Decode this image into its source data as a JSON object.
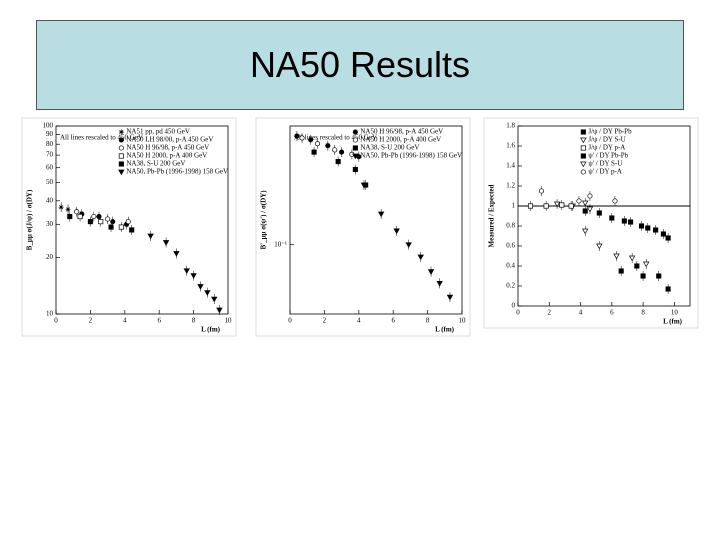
{
  "title": "NA50 Results",
  "chart_data": [
    {
      "type": "scatter",
      "ylabel": "B_μμ σ(J/ψ) / σ(DY)",
      "xlabel": "L (fm)",
      "annotation": "All lines rescaled to 450 GeV",
      "log_y": true,
      "xlim": [
        0,
        10
      ],
      "ylim": [
        10,
        100
      ],
      "xticks": [
        0,
        2,
        4,
        6,
        8,
        10
      ],
      "yticks": [
        10,
        20,
        30,
        40,
        50,
        60,
        70,
        80,
        90,
        100
      ],
      "legend": "top-right",
      "series": [
        {
          "name": "NA51 pp, pd 450 GeV",
          "marker": "star",
          "filled": true,
          "x": [
            0.3,
            0.7
          ],
          "values": [
            37,
            36
          ]
        },
        {
          "name": "NA50 LH 98/00, p-A 450 GeV",
          "marker": "circle",
          "filled": true,
          "x": [
            1.5,
            2.5,
            3.3,
            4.1
          ],
          "values": [
            34,
            33,
            31,
            30
          ]
        },
        {
          "name": "NA50 H 96/98, p-A 450 GeV",
          "marker": "circle",
          "filled": false,
          "x": [
            1.2,
            2.2,
            3.0,
            4.2
          ],
          "values": [
            35,
            33,
            32,
            31
          ]
        },
        {
          "name": "NA50 H 2000, p-A 400 GeV",
          "marker": "square",
          "filled": false,
          "x": [
            1.4,
            2.6,
            3.8
          ],
          "values": [
            33,
            31,
            29
          ]
        },
        {
          "name": "NA38, S-U 200 GeV",
          "marker": "square",
          "filled": true,
          "x": [
            0.8,
            2.0,
            3.2,
            4.4
          ],
          "values": [
            33,
            31,
            29,
            28
          ]
        },
        {
          "name": "NA50, Pb-Pb (1996-1998) 158 GeV",
          "marker": "triangle",
          "filled": true,
          "x": [
            5.5,
            6.4,
            7.0,
            7.6,
            8.0,
            8.4,
            8.8,
            9.2,
            9.5
          ],
          "values": [
            26,
            24,
            21,
            17,
            16,
            14,
            13,
            12,
            10.5
          ]
        }
      ]
    },
    {
      "type": "scatter",
      "ylabel": "B'_μμ σ(ψ') / σ(DY)",
      "xlabel": "L (fm)",
      "annotation": "All lines rescaled to 450 GeV",
      "log_y": true,
      "xlim": [
        0,
        10
      ],
      "ylim": [
        0.04,
        0.48
      ],
      "xticks": [
        0,
        2,
        4,
        6,
        8,
        10
      ],
      "yticks": [
        {
          "value": 0.1,
          "label": "10⁻¹"
        }
      ],
      "legend": "top-right",
      "series": [
        {
          "name": "NA50 H 96/98, p-A 450 GeV",
          "marker": "circle",
          "filled": true,
          "x": [
            0.4,
            1.2,
            2.2,
            3.0,
            4.0
          ],
          "values": [
            0.42,
            0.4,
            0.37,
            0.34,
            0.32
          ]
        },
        {
          "name": "NA50 H 2000, p-A 400 GeV",
          "marker": "circle",
          "filled": false,
          "x": [
            0.7,
            1.6,
            2.6,
            3.6
          ],
          "values": [
            0.41,
            0.38,
            0.35,
            0.33
          ]
        },
        {
          "name": "NA38, S-U 200 GeV",
          "marker": "square",
          "filled": true,
          "x": [
            1.4,
            2.8,
            3.8,
            4.4
          ],
          "values": [
            0.34,
            0.3,
            0.27,
            0.22
          ]
        },
        {
          "name": "NA50, Pb-Pb (1996-1998) 158 GeV",
          "marker": "triangle",
          "filled": true,
          "x": [
            4.3,
            5.3,
            6.2,
            6.9,
            7.6,
            8.2,
            8.7,
            9.3
          ],
          "values": [
            0.22,
            0.15,
            0.12,
            0.1,
            0.085,
            0.07,
            0.06,
            0.05
          ]
        }
      ]
    },
    {
      "type": "scatter",
      "ylabel": "Measured / Expected",
      "xlabel": "L (fm)",
      "reference_line": 1,
      "log_y": false,
      "xlim": [
        0,
        11
      ],
      "ylim": [
        0,
        1.8
      ],
      "xticks": [
        0,
        2,
        4,
        6,
        8,
        10
      ],
      "yticks": [
        0,
        0.2,
        0.4,
        0.6,
        0.8,
        1,
        1.2,
        1.4,
        1.6,
        1.8
      ],
      "legend": "top-right",
      "series": [
        {
          "name": "J/ψ / DY Pb-Pb",
          "marker": "square",
          "filled": true,
          "x": [
            4.3,
            5.2,
            6.0,
            6.8,
            7.2,
            7.9,
            8.3,
            8.8,
            9.3,
            9.6
          ],
          "values": [
            0.95,
            0.93,
            0.88,
            0.85,
            0.84,
            0.8,
            0.78,
            0.76,
            0.72,
            0.68
          ]
        },
        {
          "name": "J/ψ / DY S-U",
          "marker": "triangle",
          "filled": false,
          "x": [
            2.5,
            3.5,
            4.3,
            4.6
          ],
          "values": [
            1.02,
            1.0,
            1.03,
            0.97
          ]
        },
        {
          "name": "J/ψ / DY p-A",
          "marker": "square",
          "filled": false,
          "x": [
            0.8,
            1.8,
            2.8,
            3.4
          ],
          "values": [
            1.0,
            1.0,
            1.01,
            1.0
          ]
        },
        {
          "name": "ψ' / DY Pb-Pb",
          "marker": "square",
          "filled": true,
          "x": [
            6.6,
            7.6,
            8.0,
            9.0,
            9.6
          ],
          "values": [
            0.35,
            0.4,
            0.3,
            0.3,
            0.17
          ]
        },
        {
          "name": "ψ' / DY S-U",
          "marker": "triangle",
          "filled": false,
          "x": [
            4.3,
            5.2,
            6.3,
            7.3,
            8.2
          ],
          "values": [
            0.75,
            0.6,
            0.5,
            0.48,
            0.42
          ]
        },
        {
          "name": "ψ' / DY p-A",
          "marker": "circle",
          "filled": false,
          "x": [
            1.5,
            3.9,
            4.6,
            6.2
          ],
          "values": [
            1.15,
            1.05,
            1.1,
            1.05
          ]
        }
      ]
    }
  ]
}
